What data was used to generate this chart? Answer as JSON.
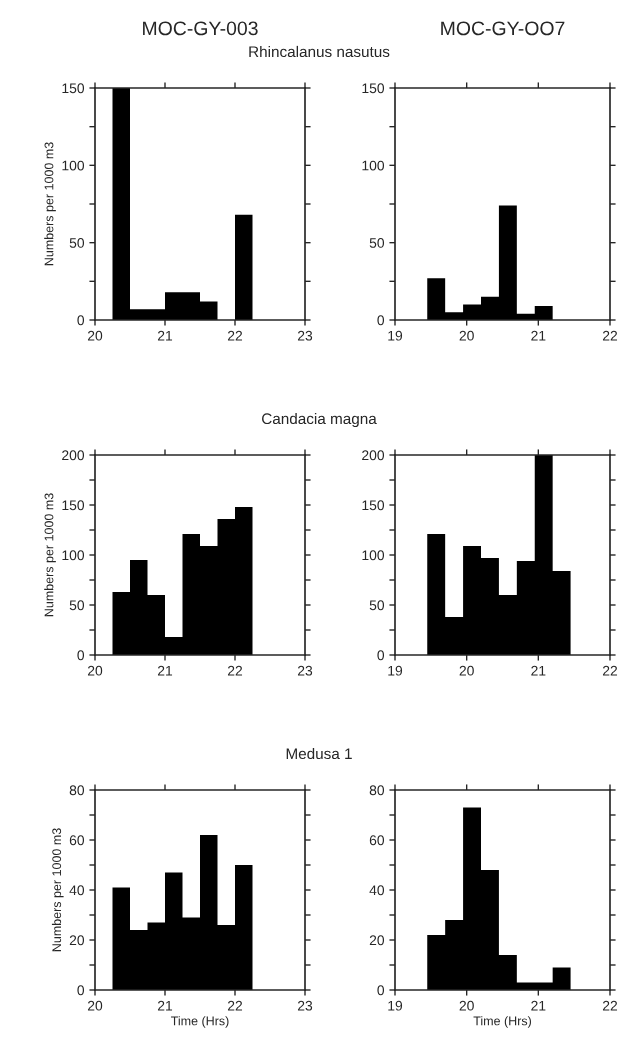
{
  "chart_data": [
    {
      "type": "histogram",
      "title": "MOC-GY-003",
      "subtitle": "Rhincalanus nasutus",
      "ylabel": "Numbers per 1000 m3",
      "color": "#000000",
      "bins": [
        20.25,
        20.5,
        20.75,
        21.0,
        21.25,
        21.5,
        21.75,
        22.0,
        22.25
      ],
      "values": [
        150,
        7,
        7,
        18,
        18,
        12,
        0,
        68
      ],
      "xlim": [
        20,
        23
      ],
      "xticks": [
        20,
        21,
        22,
        23
      ],
      "ylim": [
        0,
        150
      ],
      "yticks": [
        0,
        {
          "value": 25,
          "label": null
        },
        50,
        {
          "value": 75,
          "label": null
        },
        100,
        {
          "value": 125,
          "label": null
        },
        150
      ]
    },
    {
      "type": "histogram",
      "title": "MOC-GY-OO7",
      "color": "#000000",
      "bins": [
        19.45,
        19.7,
        19.95,
        20.2,
        20.45,
        20.7,
        20.95,
        21.2
      ],
      "values": [
        27,
        5,
        10,
        15,
        74,
        4,
        9
      ],
      "xlim": [
        19,
        22
      ],
      "xticks": [
        19,
        20,
        21,
        22
      ],
      "ylim": [
        0,
        150
      ],
      "yticks": [
        0,
        {
          "value": 25,
          "label": null
        },
        50,
        {
          "value": 75,
          "label": null
        },
        100,
        {
          "value": 125,
          "label": null
        },
        150
      ]
    },
    {
      "type": "histogram",
      "subtitle": "Candacia magna",
      "ylabel": "Numbers per 1000 m3",
      "color": "#000000",
      "bins": [
        20.25,
        20.5,
        20.75,
        21.0,
        21.25,
        21.5,
        21.75,
        22.0,
        22.25
      ],
      "values": [
        63,
        95,
        60,
        18,
        121,
        109,
        136,
        148
      ],
      "xlim": [
        20,
        23
      ],
      "xticks": [
        20,
        21,
        22,
        23
      ],
      "ylim": [
        0,
        200
      ],
      "yticks": [
        0,
        {
          "value": 25,
          "label": null
        },
        50,
        {
          "value": 75,
          "label": null
        },
        100,
        {
          "value": 125,
          "label": null
        },
        150,
        {
          "value": 175,
          "label": null
        },
        200
      ]
    },
    {
      "type": "histogram",
      "color": "#000000",
      "bins": [
        19.45,
        19.7,
        19.95,
        20.2,
        20.45,
        20.7,
        20.95,
        21.2,
        21.45
      ],
      "values": [
        121,
        38,
        109,
        97,
        60,
        94,
        200,
        84
      ],
      "xlim": [
        19,
        22
      ],
      "xticks": [
        19,
        20,
        21,
        22
      ],
      "ylim": [
        0,
        200
      ],
      "yticks": [
        0,
        {
          "value": 25,
          "label": null
        },
        50,
        {
          "value": 75,
          "label": null
        },
        100,
        {
          "value": 125,
          "label": null
        },
        150,
        {
          "value": 175,
          "label": null
        },
        200
      ]
    },
    {
      "type": "histogram",
      "subtitle": "Medusa 1",
      "ylabel": "Numbers per 1000 m3",
      "xlabel": "Time (Hrs)",
      "color": "#000000",
      "bins": [
        20.25,
        20.5,
        20.75,
        21.0,
        21.25,
        21.5,
        21.75,
        22.0,
        22.25
      ],
      "values": [
        41,
        24,
        27,
        47,
        29,
        62,
        26,
        50
      ],
      "xlim": [
        20,
        23
      ],
      "xticks": [
        20,
        21,
        22,
        23
      ],
      "ylim": [
        0,
        80
      ],
      "yticks": [
        0,
        {
          "value": 10,
          "label": null
        },
        20,
        {
          "value": 30,
          "label": null
        },
        40,
        {
          "value": 50,
          "label": null
        },
        60,
        {
          "value": 70,
          "label": null
        },
        80
      ]
    },
    {
      "type": "histogram",
      "xlabel": "Time (Hrs)",
      "color": "#000000",
      "bins": [
        19.45,
        19.7,
        19.95,
        20.2,
        20.45,
        20.7,
        20.95,
        21.2,
        21.45
      ],
      "values": [
        22,
        28,
        73,
        48,
        14,
        3,
        3,
        9
      ],
      "xlim": [
        19,
        22
      ],
      "xticks": [
        19,
        20,
        21,
        22
      ],
      "ylim": [
        0,
        80
      ],
      "yticks": [
        0,
        {
          "value": 10,
          "label": null
        },
        20,
        {
          "value": 30,
          "label": null
        },
        40,
        {
          "value": 50,
          "label": null
        },
        60,
        {
          "value": 70,
          "label": null
        },
        80
      ]
    }
  ]
}
